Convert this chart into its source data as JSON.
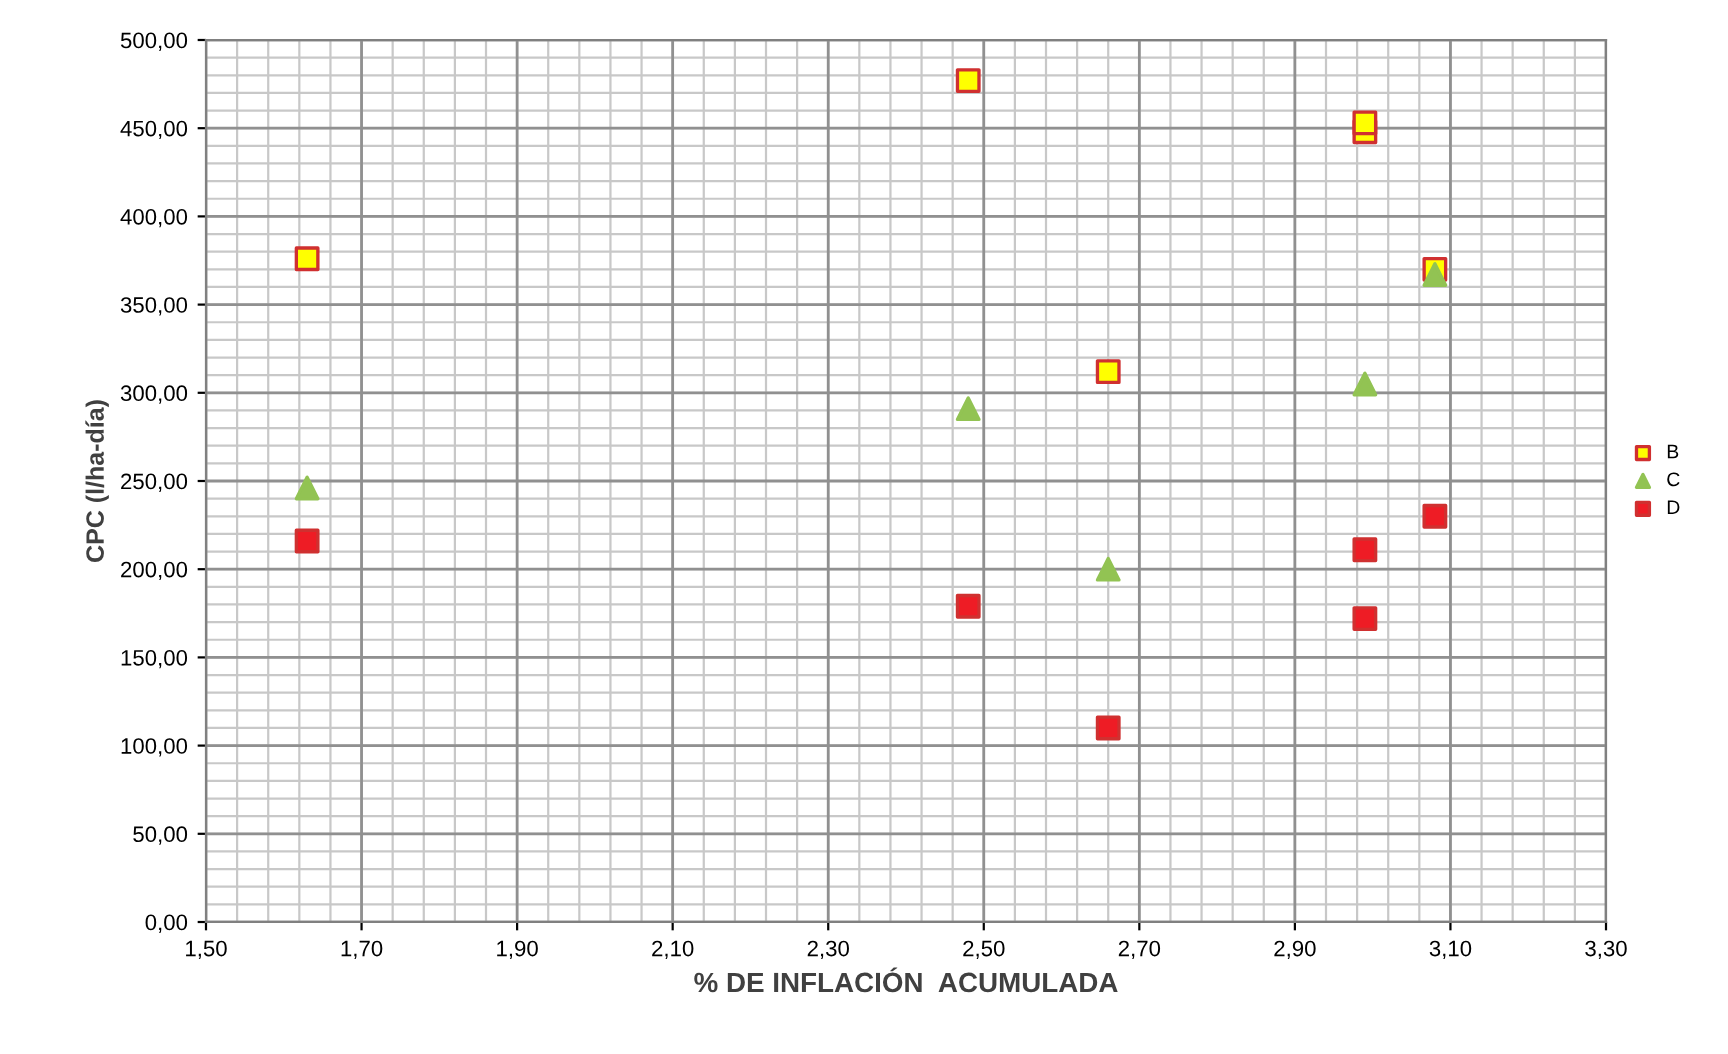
{
  "chart_data": {
    "type": "scatter",
    "xlabel": "% DE INFLACIÓN  ACUMULADA",
    "ylabel": "CPC (l/ha-día)",
    "xlim": [
      1.5,
      3.3
    ],
    "ylim": [
      0,
      500
    ],
    "xticks": [
      {
        "value": 1.5,
        "label": "1,50"
      },
      {
        "value": 1.7,
        "label": "1,70"
      },
      {
        "value": 1.9,
        "label": "1,90"
      },
      {
        "value": 2.1,
        "label": "2,10"
      },
      {
        "value": 2.3,
        "label": "2,30"
      },
      {
        "value": 2.5,
        "label": "2,50"
      },
      {
        "value": 2.7,
        "label": "2,70"
      },
      {
        "value": 2.9,
        "label": "2,90"
      },
      {
        "value": 3.1,
        "label": "3,10"
      },
      {
        "value": 3.3,
        "label": "3,30"
      }
    ],
    "yticks": [
      {
        "value": 0,
        "label": "0,00"
      },
      {
        "value": 50,
        "label": "50,00"
      },
      {
        "value": 100,
        "label": "100,00"
      },
      {
        "value": 150,
        "label": "150,00"
      },
      {
        "value": 200,
        "label": "200,00"
      },
      {
        "value": 250,
        "label": "250,00"
      },
      {
        "value": 300,
        "label": "300,00"
      },
      {
        "value": 350,
        "label": "350,00"
      },
      {
        "value": 400,
        "label": "400,00"
      },
      {
        "value": 450,
        "label": "450,00"
      },
      {
        "value": 500,
        "label": "500,00"
      }
    ],
    "grid": true,
    "legend": "right",
    "series": [
      {
        "name": "B",
        "color": "#ffff00",
        "marker": "square",
        "x": [
          1.63,
          2.48,
          2.66,
          2.99,
          2.99,
          3.08
        ],
        "values": [
          376,
          477,
          312,
          448,
          453,
          370
        ]
      },
      {
        "name": "C",
        "color": "#92c353",
        "marker": "triangle",
        "x": [
          1.63,
          2.48,
          2.66,
          2.99,
          3.08
        ],
        "values": [
          246,
          291,
          200,
          305,
          367
        ]
      },
      {
        "name": "D",
        "color": "#ee1c25",
        "marker": "square",
        "x": [
          1.63,
          2.48,
          2.66,
          2.99,
          2.99,
          3.08
        ],
        "values": [
          216,
          179,
          110,
          211,
          172,
          230
        ]
      }
    ]
  }
}
